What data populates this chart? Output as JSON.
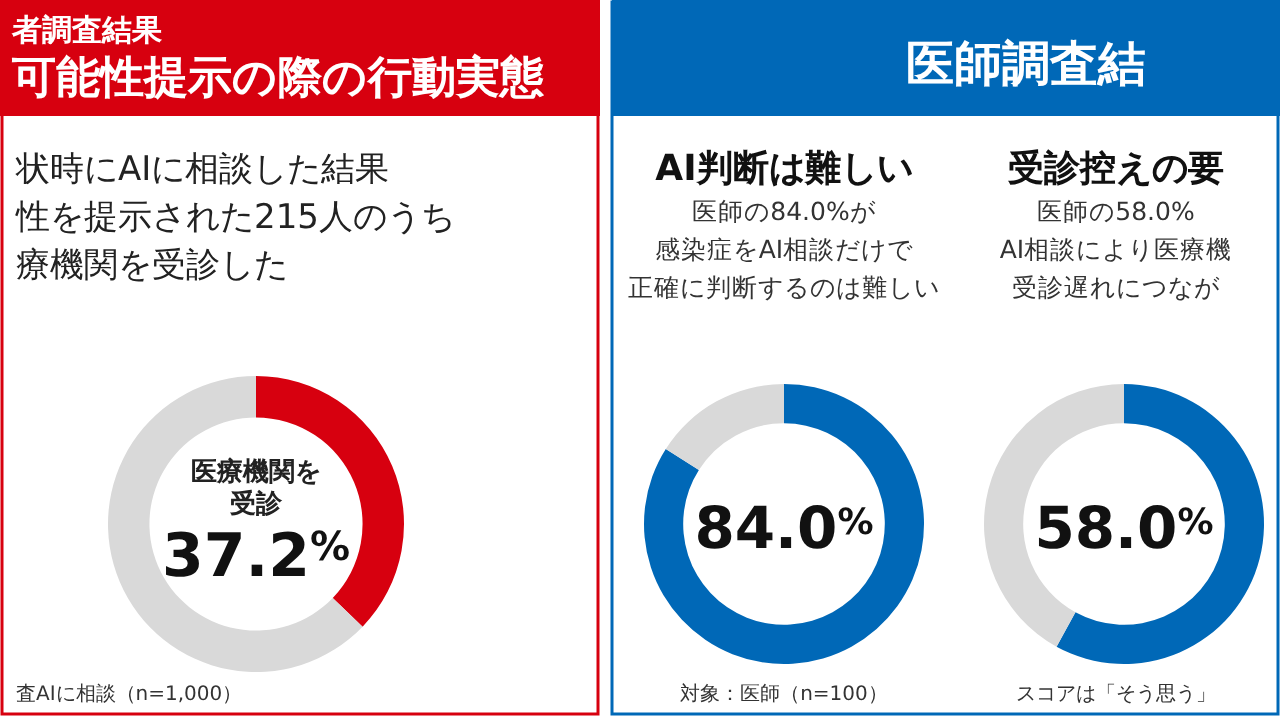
{
  "chart_data": [
    {
      "type": "donut",
      "subtitle": "者調査結果",
      "title": "可能性提示の際の行動実態",
      "categories": [
        "医療機関を受診",
        null
      ],
      "values": [
        37.2,
        62.8
      ],
      "colors": [
        "#d7000f",
        "#d9d9d9"
      ],
      "value_labels": [
        "37.2$^{%}$",
        null
      ],
      "annotations": [
        "状時にAIに相談した結果性を提示された215人のうち療機関を受診した",
        "査AIに相談（n=1,000）"
      ]
    },
    {
      "type": "other",
      "title": "医師調査結"
    },
    {
      "type": "donut",
      "title": "AI判断は難しい",
      "subtitle": "医師の84.0%が感染症をAI相談だけで正確に判断するのは難しい",
      "categories": [
        null,
        null
      ],
      "values": [
        84.0,
        16.0
      ],
      "colors": [
        "#0068b7",
        "#d9d9d9"
      ],
      "value_labels": [
        "84.0$^{%}$",
        null
      ],
      "annotations": [
        "対象：医師（n=100）"
      ]
    },
    {
      "type": "donut",
      "title": "受診控えの要",
      "subtitle": "医師の58.0%AI相談により医療機受診遅れにつなが",
      "categories": [
        null,
        null
      ],
      "values": [
        58.0,
        42.0
      ],
      "colors": [
        "#0068b7",
        "#d9d9d9"
      ],
      "value_labels": [
        "58.0$^{%}$",
        null
      ],
      "annotations": [
        "スコアは「そう思う」"
      ]
    }
  ]
}
